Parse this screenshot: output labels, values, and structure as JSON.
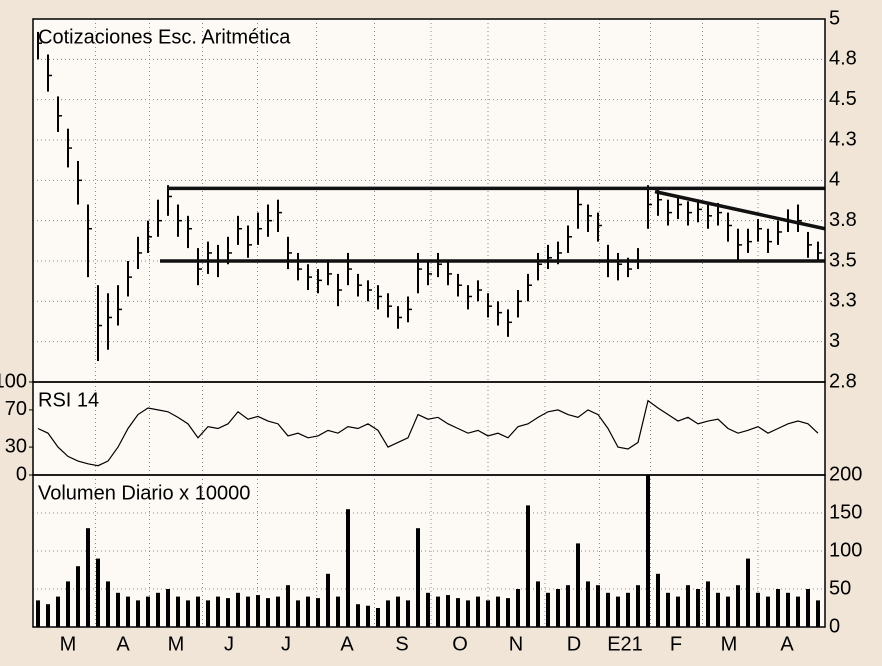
{
  "chart_data": [
    {
      "type": "ohlc",
      "title": "Cotizaciones Esc. Aritmética",
      "color": "#000000",
      "x": [
        0,
        1,
        2,
        3,
        4,
        5,
        6,
        7,
        8,
        9,
        10,
        11,
        12,
        13,
        14,
        15,
        16,
        17,
        18,
        19,
        20,
        21,
        22,
        23,
        24,
        25,
        26,
        27,
        28,
        29,
        30,
        31,
        32,
        33,
        34,
        35,
        36,
        37,
        38,
        39,
        40,
        41,
        42,
        43,
        44,
        45,
        46,
        47,
        48,
        49,
        50,
        51,
        52,
        53,
        54,
        55,
        56,
        57,
        58,
        59,
        60,
        61,
        62,
        63,
        64,
        65,
        66,
        67,
        68,
        69,
        70,
        71,
        72,
        73,
        74,
        75,
        76,
        77,
        78
      ],
      "high": [
        4.92,
        4.78,
        4.52,
        4.32,
        4.12,
        3.85,
        3.35,
        3.3,
        3.35,
        3.5,
        3.65,
        3.75,
        3.88,
        3.97,
        3.85,
        3.78,
        3.58,
        3.62,
        3.6,
        3.65,
        3.78,
        3.72,
        3.8,
        3.85,
        3.88,
        3.65,
        3.55,
        3.48,
        3.45,
        3.5,
        3.42,
        3.55,
        3.42,
        3.38,
        3.35,
        3.3,
        3.22,
        3.28,
        3.55,
        3.5,
        3.55,
        3.5,
        3.42,
        3.35,
        3.38,
        3.3,
        3.25,
        3.2,
        3.32,
        3.42,
        3.55,
        3.6,
        3.62,
        3.72,
        3.95,
        3.85,
        3.8,
        3.6,
        3.55,
        3.52,
        3.58,
        3.97,
        3.95,
        3.88,
        3.9,
        3.87,
        3.88,
        3.85,
        3.86,
        3.8,
        3.7,
        3.7,
        3.76,
        3.7,
        3.75,
        3.82,
        3.85,
        3.68,
        3.62
      ],
      "low": [
        4.75,
        4.55,
        4.3,
        4.08,
        3.85,
        3.4,
        2.88,
        2.95,
        3.1,
        3.28,
        3.45,
        3.55,
        3.65,
        3.78,
        3.65,
        3.58,
        3.35,
        3.42,
        3.4,
        3.48,
        3.6,
        3.52,
        3.6,
        3.65,
        3.68,
        3.45,
        3.38,
        3.32,
        3.3,
        3.35,
        3.22,
        3.35,
        3.28,
        3.25,
        3.2,
        3.15,
        3.08,
        3.12,
        3.3,
        3.35,
        3.4,
        3.35,
        3.28,
        3.2,
        3.25,
        3.15,
        3.1,
        3.03,
        3.15,
        3.25,
        3.38,
        3.45,
        3.48,
        3.55,
        3.7,
        3.68,
        3.62,
        3.4,
        3.38,
        3.4,
        3.45,
        3.7,
        3.78,
        3.72,
        3.76,
        3.72,
        3.74,
        3.7,
        3.72,
        3.62,
        3.5,
        3.55,
        3.62,
        3.55,
        3.6,
        3.68,
        3.68,
        3.52,
        3.5
      ],
      "close": [
        4.85,
        4.65,
        4.4,
        4.2,
        4.0,
        3.7,
        3.1,
        3.15,
        3.2,
        3.4,
        3.55,
        3.65,
        3.75,
        3.9,
        3.75,
        3.7,
        3.45,
        3.55,
        3.5,
        3.55,
        3.7,
        3.6,
        3.7,
        3.75,
        3.8,
        3.55,
        3.45,
        3.4,
        3.38,
        3.42,
        3.32,
        3.45,
        3.35,
        3.32,
        3.28,
        3.22,
        3.15,
        3.2,
        3.45,
        3.42,
        3.48,
        3.42,
        3.35,
        3.28,
        3.32,
        3.22,
        3.18,
        3.12,
        3.25,
        3.35,
        3.48,
        3.52,
        3.55,
        3.65,
        3.85,
        3.78,
        3.72,
        3.5,
        3.48,
        3.45,
        3.5,
        3.85,
        3.88,
        3.8,
        3.85,
        3.8,
        3.82,
        3.78,
        3.8,
        3.72,
        3.6,
        3.62,
        3.7,
        3.62,
        3.68,
        3.75,
        3.75,
        3.6,
        3.55
      ],
      "trendlines": [
        {
          "x": [
            12.9,
            78.7
          ],
          "y": [
            3.95,
            3.95
          ]
        },
        {
          "x": [
            12.2,
            78.7
          ],
          "y": [
            3.5,
            3.5
          ]
        },
        {
          "x": [
            61.7,
            78.7
          ],
          "y": [
            3.93,
            3.7
          ]
        }
      ],
      "xlim": [
        -0.5,
        78.7
      ],
      "ylim": [
        2.75,
        5.0
      ],
      "yticks": [
        5.0,
        {
          "value": 4.75,
          "label": "4.8"
        },
        4.5,
        {
          "value": 4.25,
          "label": "4.3"
        },
        4.0,
        {
          "value": 3.75,
          "label": "3.8"
        },
        3.5,
        {
          "value": 3.25,
          "label": "3.3"
        },
        3.0,
        {
          "value": 2.75,
          "label": "2.8"
        }
      ],
      "grid": true
    },
    {
      "type": "line",
      "title": "RSI 14",
      "color": "#000000",
      "x": [
        0,
        1,
        2,
        3,
        4,
        5,
        6,
        7,
        8,
        9,
        10,
        11,
        12,
        13,
        14,
        15,
        16,
        17,
        18,
        19,
        20,
        21,
        22,
        23,
        24,
        25,
        26,
        27,
        28,
        29,
        30,
        31,
        32,
        33,
        34,
        35,
        36,
        37,
        38,
        39,
        40,
        41,
        42,
        43,
        44,
        45,
        46,
        47,
        48,
        49,
        50,
        51,
        52,
        53,
        54,
        55,
        56,
        57,
        58,
        59,
        60,
        61,
        62,
        63,
        64,
        65,
        66,
        67,
        68,
        69,
        70,
        71,
        72,
        73,
        74,
        75,
        76,
        77,
        78
      ],
      "values": [
        50,
        45,
        30,
        20,
        15,
        12,
        10,
        15,
        30,
        50,
        65,
        72,
        70,
        68,
        62,
        55,
        40,
        52,
        50,
        55,
        68,
        60,
        63,
        58,
        55,
        42,
        45,
        40,
        42,
        48,
        45,
        52,
        50,
        55,
        48,
        30,
        35,
        40,
        65,
        60,
        62,
        55,
        50,
        45,
        48,
        42,
        45,
        40,
        52,
        55,
        62,
        68,
        70,
        65,
        62,
        70,
        65,
        50,
        30,
        28,
        35,
        80,
        72,
        65,
        58,
        62,
        55,
        58,
        60,
        50,
        45,
        48,
        52,
        45,
        50,
        55,
        58,
        55,
        45
      ],
      "xlim": [
        -0.5,
        78.7
      ],
      "ylim": [
        0,
        100
      ],
      "yticks": [
        0,
        30,
        70,
        100
      ],
      "grid": false
    },
    {
      "type": "bar",
      "title": "Volumen Diario x 10000",
      "color": "#000000",
      "x": [
        0,
        1,
        2,
        3,
        4,
        5,
        6,
        7,
        8,
        9,
        10,
        11,
        12,
        13,
        14,
        15,
        16,
        17,
        18,
        19,
        20,
        21,
        22,
        23,
        24,
        25,
        26,
        27,
        28,
        29,
        30,
        31,
        32,
        33,
        34,
        35,
        36,
        37,
        38,
        39,
        40,
        41,
        42,
        43,
        44,
        45,
        46,
        47,
        48,
        49,
        50,
        51,
        52,
        53,
        54,
        55,
        56,
        57,
        58,
        59,
        60,
        61,
        62,
        63,
        64,
        65,
        66,
        67,
        68,
        69,
        70,
        71,
        72,
        73,
        74,
        75,
        76,
        77,
        78
      ],
      "values": [
        35,
        30,
        40,
        60,
        80,
        130,
        90,
        60,
        45,
        40,
        35,
        40,
        45,
        50,
        40,
        35,
        40,
        35,
        40,
        38,
        45,
        40,
        42,
        38,
        40,
        55,
        35,
        40,
        38,
        70,
        40,
        155,
        30,
        28,
        25,
        35,
        40,
        35,
        130,
        45,
        40,
        42,
        38,
        35,
        40,
        35,
        40,
        38,
        50,
        160,
        60,
        45,
        50,
        55,
        110,
        60,
        55,
        45,
        40,
        45,
        55,
        200,
        70,
        45,
        40,
        55,
        50,
        60,
        45,
        40,
        55,
        90,
        45,
        40,
        50,
        45,
        40,
        50,
        35
      ],
      "xlim": [
        -0.5,
        78.7
      ],
      "ylim": [
        0,
        200
      ],
      "yticks": [
        0,
        50,
        100,
        150,
        200
      ],
      "xticks": [
        {
          "value": 3,
          "label": "M"
        },
        {
          "value": 8.5,
          "label": "A"
        },
        {
          "value": 13.8,
          "label": "M"
        },
        {
          "value": 19.1,
          "label": "J"
        },
        {
          "value": 24.8,
          "label": "J"
        },
        {
          "value": 30.9,
          "label": "A"
        },
        {
          "value": 36.4,
          "label": "S"
        },
        {
          "value": 42.2,
          "label": "O"
        },
        {
          "value": 47.8,
          "label": "N"
        },
        {
          "value": 53.6,
          "label": "D"
        },
        {
          "value": 58.7,
          "label": "E21"
        },
        {
          "value": 63.8,
          "label": "F"
        },
        {
          "value": 69.1,
          "label": "M"
        },
        {
          "value": 74.9,
          "label": "A"
        }
      ],
      "grid": true
    }
  ]
}
